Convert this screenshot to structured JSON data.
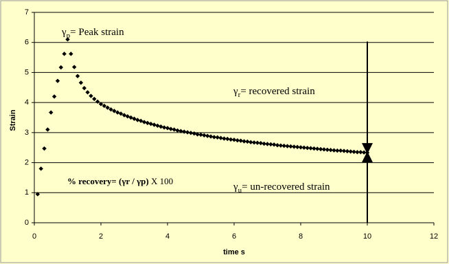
{
  "chart_data": {
    "type": "scatter",
    "xlabel": "time s",
    "ylabel": "Strain",
    "xlim": [
      0,
      12
    ],
    "xticks": [
      0,
      2,
      4,
      6,
      8,
      10,
      12
    ],
    "ylim": [
      0,
      7
    ],
    "yticks": [
      0,
      1,
      2,
      3,
      4,
      5,
      6,
      7
    ],
    "grid": true,
    "color": "#000000",
    "x": [
      0.1,
      0.2,
      0.3,
      0.4,
      0.5,
      0.6,
      0.7,
      0.8,
      0.9,
      1.0,
      1.1,
      1.2,
      1.3,
      1.4,
      1.5,
      1.6,
      1.7,
      1.8,
      1.9,
      2.0,
      2.1,
      2.2,
      2.3,
      2.4,
      2.5,
      2.6,
      2.7,
      2.8,
      2.9,
      3.0,
      3.1,
      3.2,
      3.3,
      3.4,
      3.5,
      3.6,
      3.7,
      3.8,
      3.9,
      4.0,
      4.1,
      4.2,
      4.3,
      4.4,
      4.5,
      4.6,
      4.7,
      4.8,
      4.9,
      5.0,
      5.1,
      5.2,
      5.3,
      5.4,
      5.5,
      5.6,
      5.7,
      5.8,
      5.9,
      6.0,
      6.1,
      6.2,
      6.3,
      6.4,
      6.5,
      6.6,
      6.7,
      6.8,
      6.9,
      7.0,
      7.1,
      7.2,
      7.3,
      7.4,
      7.5,
      7.6,
      7.7,
      7.8,
      7.9,
      8.0,
      8.1,
      8.2,
      8.3,
      8.4,
      8.5,
      8.6,
      8.7,
      8.8,
      8.9,
      9.0,
      9.1,
      9.2,
      9.3,
      9.4,
      9.5,
      9.6,
      9.7,
      9.8,
      9.9,
      10.0
    ],
    "values": [
      0.95,
      1.8,
      2.47,
      3.1,
      3.67,
      4.2,
      4.72,
      5.17,
      5.62,
      6.1,
      5.62,
      5.18,
      4.88,
      4.66,
      4.48,
      4.34,
      4.22,
      4.12,
      4.03,
      3.95,
      3.89,
      3.83,
      3.77,
      3.72,
      3.67,
      3.63,
      3.58,
      3.54,
      3.5,
      3.46,
      3.42,
      3.39,
      3.35,
      3.32,
      3.29,
      3.26,
      3.23,
      3.2,
      3.17,
      3.15,
      3.12,
      3.1,
      3.07,
      3.05,
      3.03,
      3.01,
      2.99,
      2.97,
      2.94,
      2.93,
      2.91,
      2.89,
      2.87,
      2.85,
      2.84,
      2.82,
      2.8,
      2.79,
      2.77,
      2.76,
      2.74,
      2.73,
      2.71,
      2.7,
      2.68,
      2.67,
      2.66,
      2.65,
      2.63,
      2.62,
      2.61,
      2.6,
      2.58,
      2.57,
      2.56,
      2.55,
      2.54,
      2.53,
      2.52,
      2.51,
      2.5,
      2.49,
      2.48,
      2.47,
      2.46,
      2.45,
      2.44,
      2.43,
      2.42,
      2.41,
      2.4,
      2.4,
      2.39,
      2.38,
      2.37,
      2.36,
      2.35,
      2.35,
      2.34,
      2.33
    ],
    "annotations": [
      {
        "symbol": "γ",
        "sub": "p",
        "text": "= Peak  strain"
      },
      {
        "symbol": "γ",
        "sub": "r",
        "text": "= recovered strain"
      },
      {
        "symbol": "γ",
        "sub": "u",
        "text": "= un-recovered strain"
      }
    ],
    "formula": {
      "lead": "% recovery= (γr / γp)",
      "tail": " X 100"
    }
  }
}
